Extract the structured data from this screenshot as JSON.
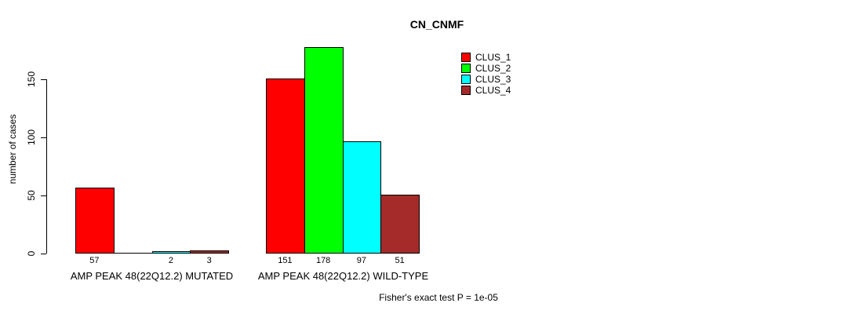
{
  "title": "CN_CNMF",
  "footer": "Fisher's exact test P = 1e-05",
  "accent_colors": {
    "clus_1": "#FF0000",
    "clus_2": "#00FF00",
    "clus_3": "#00FFFF",
    "clus_4": "#A52A2A",
    "axis": "#000000"
  },
  "chart_data": {
    "type": "bar",
    "title": "CN_CNMF",
    "xlabel": "",
    "ylabel": "number of cases",
    "ylim": [
      0,
      185
    ],
    "yticks": [
      0,
      50,
      100,
      150
    ],
    "grid": false,
    "legend_position": "top-right",
    "legend_border": false,
    "categories": [
      "AMP PEAK 48(22Q12.2) MUTATED",
      "AMP PEAK 48(22Q12.2) WILD-TYPE"
    ],
    "series": [
      {
        "name": "CLUS_1",
        "color": "#FF0000",
        "values": [
          57,
          151
        ]
      },
      {
        "name": "CLUS_2",
        "color": "#00FF00",
        "values": [
          0,
          178
        ]
      },
      {
        "name": "CLUS_3",
        "color": "#00FFFF",
        "values": [
          2,
          97
        ]
      },
      {
        "name": "CLUS_4",
        "color": "#A52A2A",
        "values": [
          3,
          51
        ]
      }
    ],
    "bar_value_labels": [
      [
        "57",
        "",
        "2",
        "3"
      ],
      [
        "151",
        "178",
        "97",
        "51"
      ]
    ],
    "annotation": "Fisher's exact test P = 1e-05"
  }
}
